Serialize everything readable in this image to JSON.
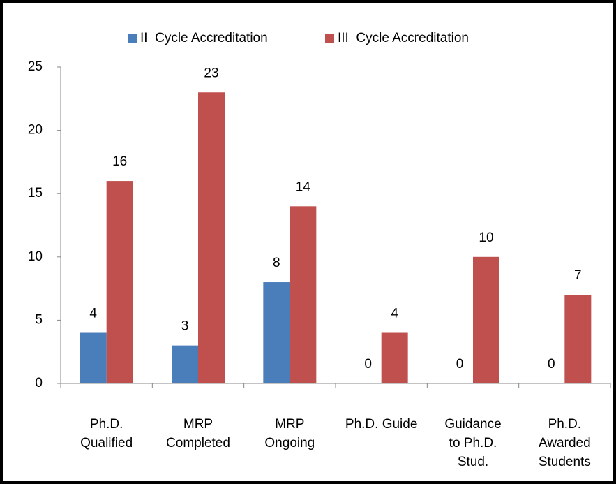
{
  "chart_data": {
    "type": "bar",
    "categories": [
      "Ph.D.\nQualified",
      "MRP\nCompleted",
      "MRP\nOngoing",
      "Ph.D. Guide",
      "Guidance\nto Ph.D.\nStud.",
      "Ph.D.\nAwarded\nStudents"
    ],
    "series": [
      {
        "name": "II  Cycle Accreditation",
        "color": "#4a7ebb",
        "values": [
          4,
          3,
          8,
          0,
          0,
          0
        ]
      },
      {
        "name": "III  Cycle Accreditation",
        "color": "#c0504d",
        "values": [
          16,
          23,
          14,
          4,
          10,
          7
        ]
      }
    ],
    "ylim": [
      0,
      25
    ],
    "yticks": [
      0,
      5,
      10,
      15,
      20,
      25
    ],
    "legend": "top"
  }
}
